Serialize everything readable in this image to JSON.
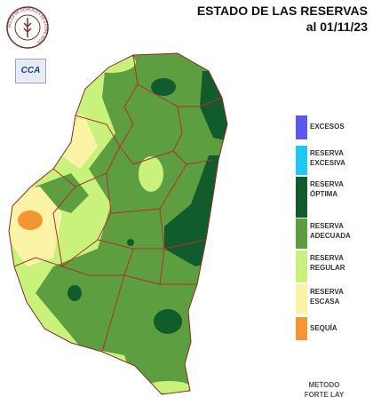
{
  "header": {
    "title_line1": "ESTADO DE LAS RESERVAS",
    "title_line2": "al 01/11/23"
  },
  "logos": {
    "bolsa": "BOLSA DE CEREALES DE ENTRE RIOS",
    "cca": "CCA"
  },
  "legend": [
    {
      "label": "EXCESOS",
      "color": "#5a5af2"
    },
    {
      "label": "RESERVA EXCESIVA",
      "color": "#1ec8f5"
    },
    {
      "label": "RESERVA ÓPTIMA",
      "color": "#115c2c"
    },
    {
      "label": "RESERVA ADECUADA",
      "color": "#5d9e40"
    },
    {
      "label": "RESERVA REGULAR",
      "color": "#c9f27c"
    },
    {
      "label": "RESERVA ESCASA",
      "color": "#fdf3a6"
    },
    {
      "label": "SEQUÍA",
      "color": "#f49630"
    }
  ],
  "footer": {
    "method": "METODO FORTE LAY"
  }
}
